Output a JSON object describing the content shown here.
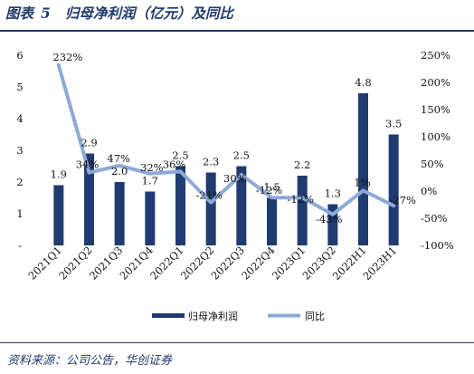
{
  "figure": {
    "label": "图表",
    "number": "5",
    "title": "归母净利润（亿元）及同比",
    "source": "资料来源：公司公告，华创证券"
  },
  "colors": {
    "bar": "#1f3b70",
    "line": "#8ea9d7",
    "accent": "#1f3a6b"
  },
  "chart_data": {
    "type": "bar",
    "categories": [
      "2021Q1",
      "2021Q2",
      "2021Q3",
      "2021Q4",
      "2022Q1",
      "2022Q2",
      "2022Q3",
      "2022Q4",
      "2023Q1",
      "2023Q2",
      "2022H1",
      "2023H1"
    ],
    "series": [
      {
        "name": "归母净利润",
        "type": "bar",
        "axis": "left",
        "values": [
          1.9,
          2.9,
          2.0,
          1.7,
          2.5,
          2.3,
          2.5,
          1.5,
          2.2,
          1.3,
          4.8,
          3.5
        ],
        "labels": [
          "1.9",
          "2.9",
          "2.0",
          "1.7",
          "2.5",
          "2.3",
          "2.5",
          "1.5",
          "2.2",
          "1.3",
          "4.8",
          "3.5"
        ]
      },
      {
        "name": "同比",
        "type": "line",
        "axis": "right",
        "values": [
          232,
          34,
          47,
          32,
          36,
          -21,
          30,
          -12,
          -12,
          -43,
          1,
          -27
        ],
        "labels": [
          "232%",
          "34%",
          "47%",
          "32%",
          "36%",
          "-21%",
          "30%",
          "-12%",
          "-12%",
          "-43%",
          "1%",
          "-27%"
        ]
      }
    ],
    "y_left": {
      "range": [
        -1,
        6
      ],
      "ticks": [
        "-",
        "1",
        "2",
        "3",
        "4",
        "5",
        "6"
      ],
      "tick_values": [
        0,
        1,
        2,
        3,
        4,
        5,
        6
      ]
    },
    "y_right": {
      "range": [
        -100,
        250
      ],
      "ticks": [
        "-100%",
        "-50%",
        "0%",
        "50%",
        "100%",
        "150%",
        "200%",
        "250%"
      ],
      "tick_values": [
        -100,
        -50,
        0,
        50,
        100,
        150,
        200,
        250
      ]
    },
    "legend_position": "bottom",
    "grid": false
  }
}
